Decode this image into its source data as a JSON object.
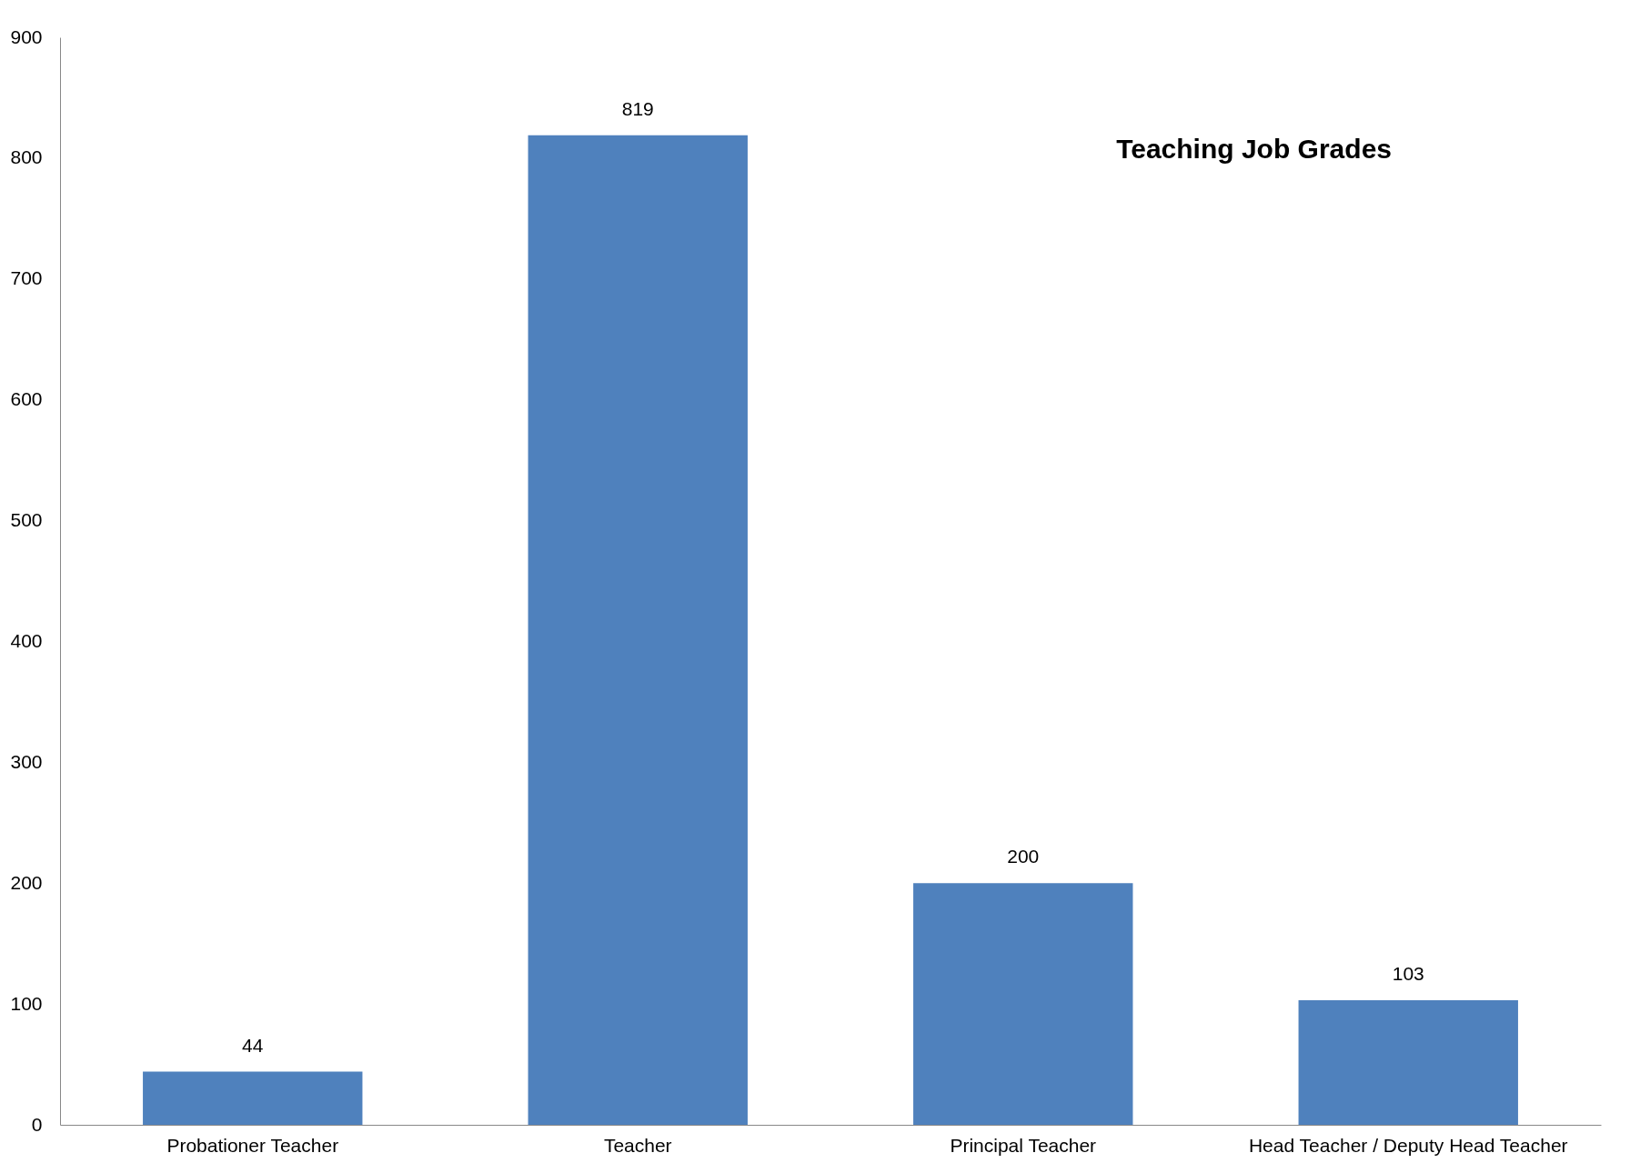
{
  "chart_data": {
    "type": "bar",
    "title": "Teaching Job Grades",
    "categories": [
      "Probationer Teacher",
      "Teacher",
      "Principal Teacher",
      "Head Teacher / Deputy Head Teacher"
    ],
    "values": [
      44,
      819,
      200,
      103
    ],
    "color": "#4f81bd",
    "ylim": [
      0,
      900
    ],
    "yticks": [
      0,
      100,
      200,
      300,
      400,
      500,
      600,
      700,
      800,
      900
    ],
    "data_labels": true,
    "grid": false
  }
}
